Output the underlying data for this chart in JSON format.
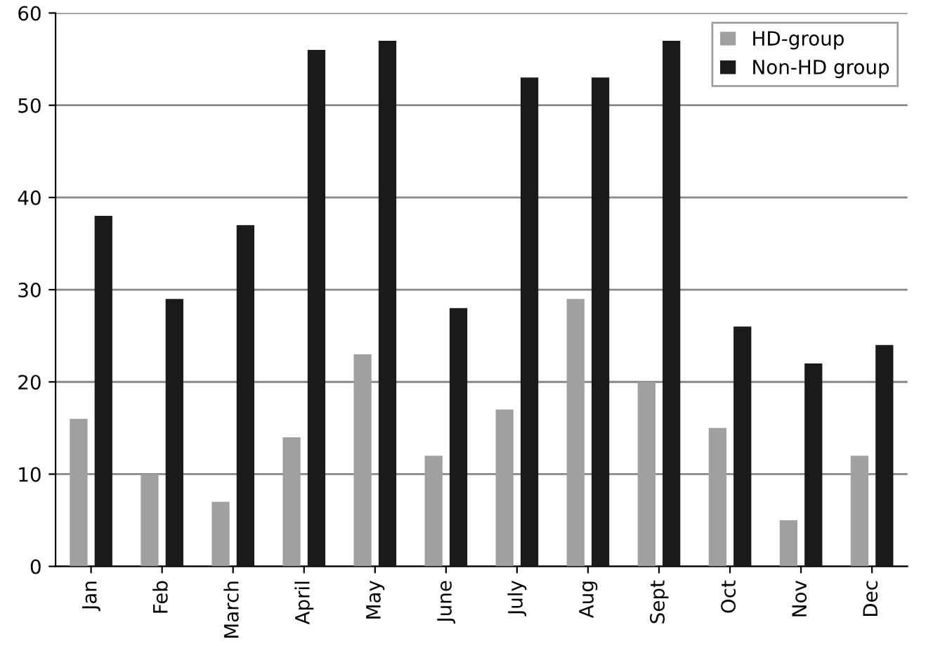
{
  "chart_data": {
    "type": "bar",
    "categories": [
      "Jan",
      "Feb",
      "March",
      "April",
      "May",
      "June",
      "July",
      "Aug",
      "Sept",
      "Oct",
      "Nov",
      "Dec"
    ],
    "series": [
      {
        "name": "HD-group",
        "color": "#a0a0a0",
        "values": [
          16,
          10,
          7,
          14,
          23,
          12,
          17,
          29,
          20,
          15,
          5,
          12
        ]
      },
      {
        "name": "Non-HD group",
        "color": "#1a1a1a",
        "values": [
          38,
          29,
          37,
          56,
          57,
          28,
          53,
          53,
          57,
          26,
          22,
          24
        ]
      }
    ],
    "ylim": [
      0,
      60
    ],
    "yticks": [
      0,
      10,
      20,
      30,
      40,
      50,
      60
    ],
    "grid": "y",
    "legend": "top right"
  }
}
